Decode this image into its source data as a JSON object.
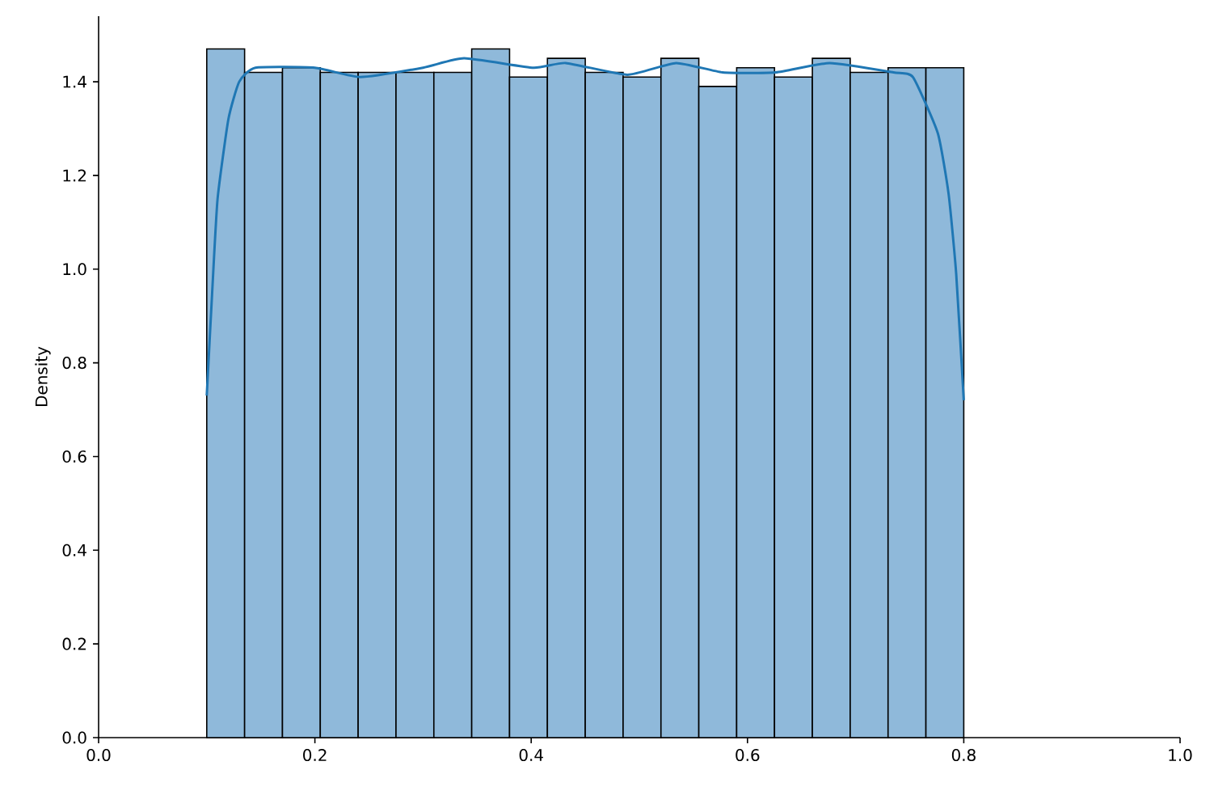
{
  "chart_data": {
    "type": "histogram",
    "ylabel": "Density",
    "xlim": [
      0,
      1
    ],
    "ylim": [
      0,
      1.54
    ],
    "xticks": [
      {
        "value": 0,
        "label": "0.0"
      },
      0.2,
      0.4,
      0.6,
      0.8,
      {
        "value": 1,
        "label": "1.0"
      }
    ],
    "yticks": [
      {
        "value": 0,
        "label": "0.0"
      },
      0.2,
      0.4,
      0.6,
      0.8,
      {
        "value": 1,
        "label": "1.0"
      },
      1.2,
      1.4
    ],
    "series": [
      {
        "type": "histogram",
        "color": "#8fb9da",
        "bins": [
          0.1,
          0.135,
          0.17,
          0.205,
          0.24,
          0.275,
          0.31,
          0.345,
          0.38,
          0.415,
          0.45,
          0.485,
          0.52,
          0.555,
          0.59,
          0.625,
          0.66,
          0.695,
          0.73,
          0.765,
          0.8
        ],
        "values": [
          1.47,
          1.42,
          1.43,
          1.42,
          1.42,
          1.42,
          1.42,
          1.47,
          1.41,
          1.45,
          1.42,
          1.41,
          1.45,
          1.39,
          1.43,
          1.41,
          1.45,
          1.42,
          1.43,
          1.43
        ]
      },
      {
        "type": "line",
        "color": "#1f77b4",
        "x": [
          0.1,
          0.105,
          0.11,
          0.12,
          0.13,
          0.145,
          0.2,
          0.242,
          0.3,
          0.338,
          0.402,
          0.432,
          0.489,
          0.534,
          0.577,
          0.626,
          0.676,
          0.735,
          0.753,
          0.776,
          0.786,
          0.793,
          0.8
        ],
        "values": [
          0.73,
          0.95,
          1.15,
          1.32,
          1.4,
          1.43,
          1.43,
          1.41,
          1.43,
          1.45,
          1.43,
          1.44,
          1.415,
          1.44,
          1.42,
          1.42,
          1.44,
          1.42,
          1.41,
          1.29,
          1.16,
          0.99,
          0.72
        ]
      }
    ]
  }
}
